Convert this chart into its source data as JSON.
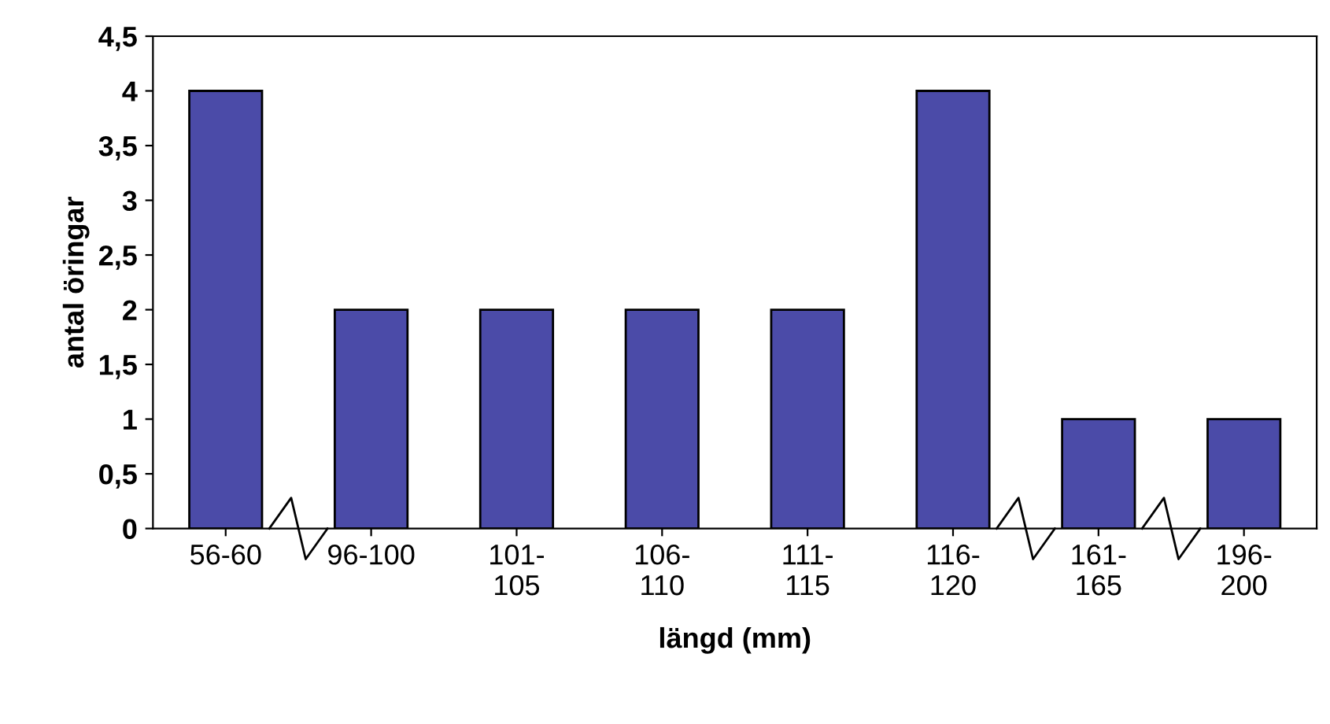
{
  "chart_data": {
    "type": "bar",
    "xlabel": "längd (mm)",
    "ylabel": "antal öringar",
    "categories": [
      "56-60",
      "96-100",
      "101-\n105",
      "106-\n110",
      "111-\n115",
      "116-\n120",
      "161-\n165",
      "196-\n200"
    ],
    "values": [
      4,
      2,
      2,
      2,
      2,
      4,
      1,
      1
    ],
    "color": "#4b4ba8",
    "ylim": [
      0,
      4.5
    ],
    "yticks": [
      0,
      {
        "value": 0.5,
        "label": "0,5"
      },
      1,
      {
        "value": 1.5,
        "label": "1,5"
      },
      2,
      {
        "value": 2.5,
        "label": "2,5"
      },
      3,
      {
        "value": 3.5,
        "label": "3,5"
      },
      4,
      {
        "value": 4.5,
        "label": "4,5"
      }
    ],
    "grid": false,
    "legend": false
  }
}
